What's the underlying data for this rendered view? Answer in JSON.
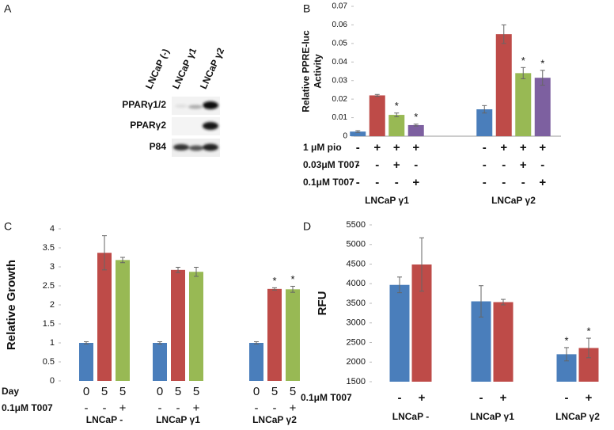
{
  "panel_labels": [
    "A",
    "B",
    "C",
    "D"
  ],
  "blot": {
    "lanes": [
      "LNCaP (-)",
      "LNCaP γ1",
      "LNCaP γ2"
    ],
    "rows": [
      "PPARγ1/2",
      "PPARγ2",
      "P84"
    ]
  },
  "chart_data": [
    {
      "type": "bar",
      "ylabel": [
        "Relative PPRE-luc",
        "Activity"
      ],
      "categories": [
        "LNCaP γ1",
        "LNCaP γ2"
      ],
      "series": [
        {
          "color": "#4a7ebb",
          "values": [
            0.0025,
            0.0145
          ],
          "errors": [
            0.0005,
            0.002
          ]
        },
        {
          "color": "#be4b48",
          "values": [
            0.022,
            0.055
          ],
          "errors": [
            0.0005,
            0.005
          ]
        },
        {
          "color": "#98b954",
          "values": [
            0.0115,
            0.034
          ],
          "errors": [
            0.001,
            0.003
          ],
          "annotations": [
            "*",
            "*"
          ]
        },
        {
          "color": "#7d60a0",
          "values": [
            0.006,
            0.0315
          ],
          "errors": [
            0.0005,
            0.004
          ],
          "annotations": [
            "*",
            "*"
          ]
        }
      ],
      "rows": [
        {
          "label": "1 μM pio",
          "signs": [
            "-",
            "+",
            "+",
            "+"
          ]
        },
        {
          "label": "0.03μM T007",
          "signs": [
            "-",
            "-",
            "+",
            "-"
          ]
        },
        {
          "label": "0.1μM T007",
          "signs": [
            "-",
            "-",
            "-",
            "+"
          ]
        }
      ],
      "ylim": [
        0,
        0.07
      ],
      "yticks": [
        0,
        0.01,
        0.02,
        0.03,
        0.04,
        0.05,
        0.06,
        0.07
      ]
    },
    {
      "type": "bar",
      "ylabel": [
        "Relative Growth"
      ],
      "categories": [
        "LNCaP -",
        "LNCaP γ1",
        "LNCaP γ2"
      ],
      "series": [
        {
          "color": "#4a7ebb",
          "values": [
            1,
            1,
            1
          ],
          "errors": [
            0.03,
            0.03,
            0.03
          ]
        },
        {
          "color": "#be4b48",
          "values": [
            3.37,
            2.92,
            2.42
          ],
          "errors": [
            0.45,
            0.07,
            0.03
          ],
          "annotations": [
            null,
            null,
            "*"
          ]
        },
        {
          "color": "#98b954",
          "values": [
            3.18,
            2.87,
            2.41
          ],
          "errors": [
            0.07,
            0.12,
            0.08
          ],
          "annotations": [
            null,
            null,
            "*"
          ]
        }
      ],
      "rows": [
        {
          "label": "Day",
          "signs": [
            "0",
            "5",
            "5"
          ]
        },
        {
          "label": "0.1μM T007",
          "signs": [
            "-",
            "-",
            "+"
          ]
        }
      ],
      "ylim": [
        0,
        4
      ],
      "yticks": [
        0,
        0.5,
        1,
        1.5,
        2,
        2.5,
        3,
        3.5,
        4
      ]
    },
    {
      "type": "bar",
      "ylabel": [
        "RFU"
      ],
      "categories": [
        "LNCaP -",
        "LNCaP γ1",
        "LNCaP γ2"
      ],
      "series": [
        {
          "color": "#4a7ebb",
          "values": [
            3970,
            3550,
            2200
          ],
          "errors": [
            200,
            400,
            170
          ],
          "annotations": [
            null,
            null,
            "*"
          ]
        },
        {
          "color": "#be4b48",
          "values": [
            4490,
            3530,
            2360
          ],
          "errors": [
            680,
            70,
            250
          ],
          "annotations": [
            null,
            null,
            "*"
          ]
        }
      ],
      "rows": [
        {
          "label": "0.1μM T007",
          "signs": [
            "-",
            "+"
          ]
        }
      ],
      "ylim": [
        1500,
        5500
      ],
      "yticks": [
        1500,
        2000,
        2500,
        3000,
        3500,
        4000,
        4500,
        5000,
        5500
      ]
    }
  ]
}
